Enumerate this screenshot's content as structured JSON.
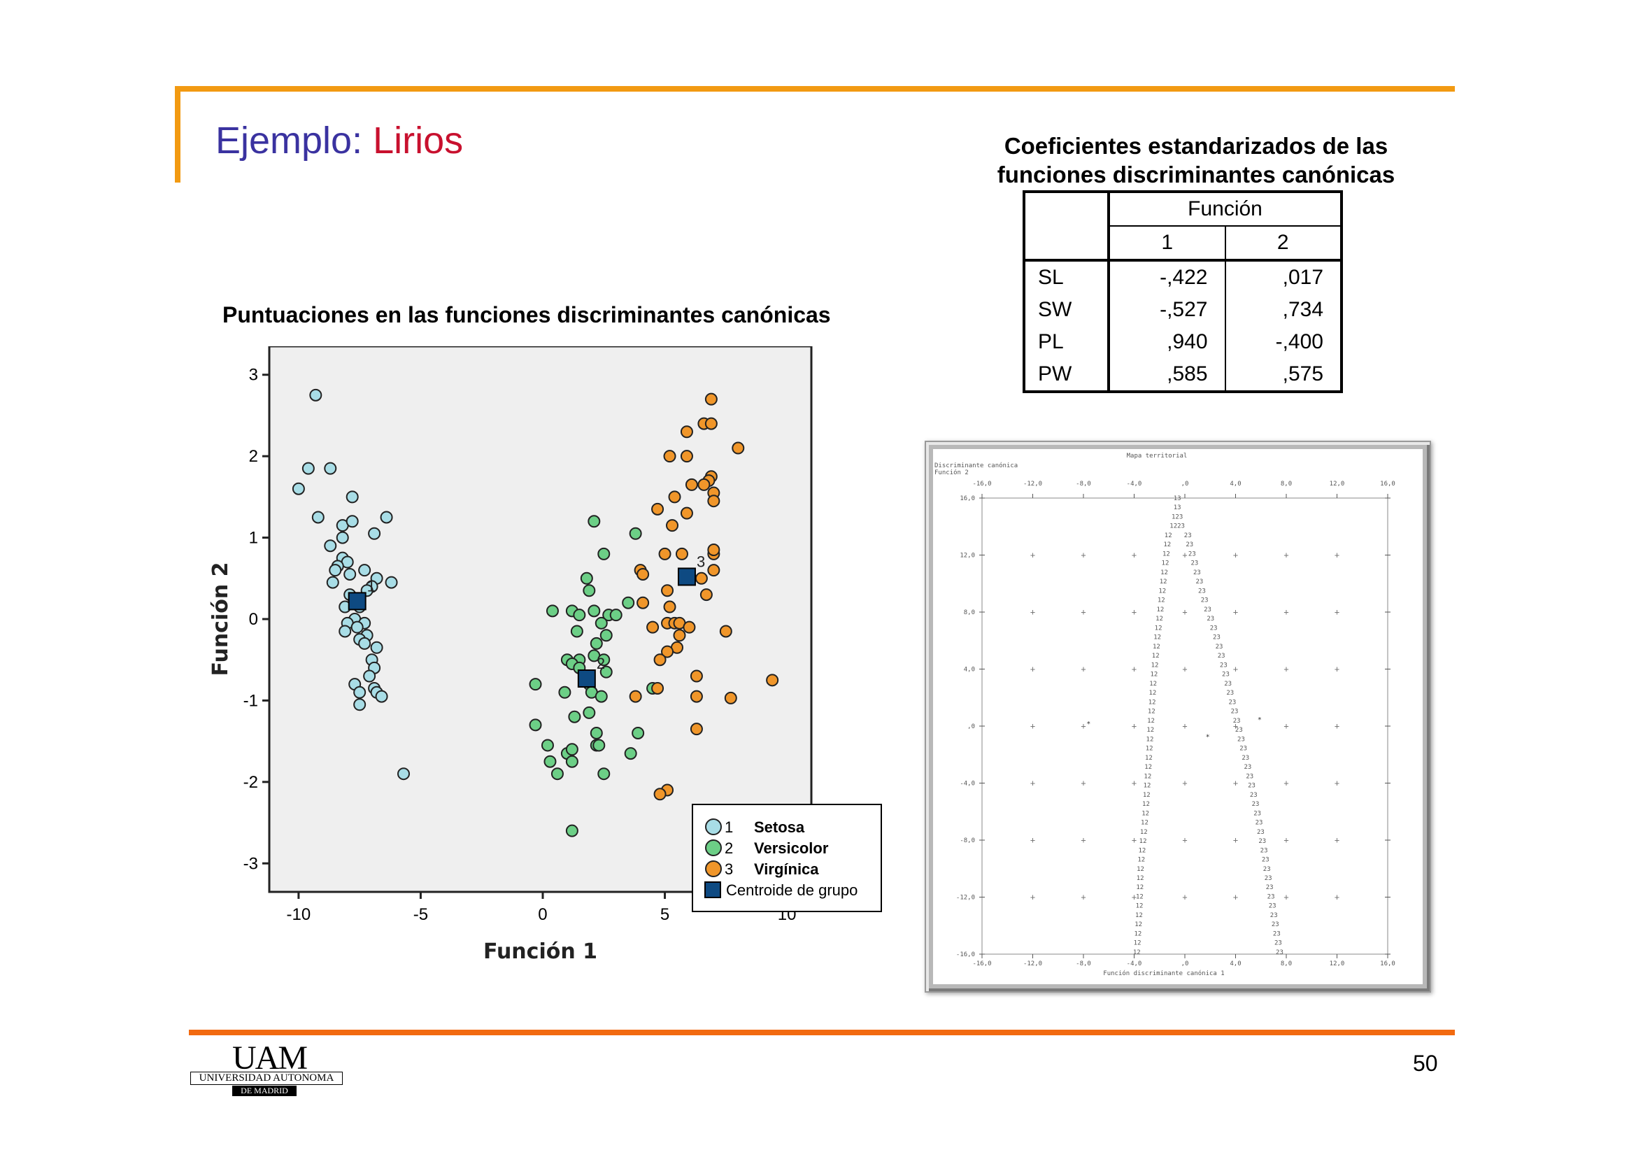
{
  "slide": {
    "title_main": "Ejemplo: ",
    "title_accent": "Lirios",
    "page_number": "50",
    "accent_color": "#f29a12",
    "title_color": "#3a32a0",
    "title_accent_color": "#c8102e"
  },
  "coef_table": {
    "title_line1": "Coeficientes estandarizados de las",
    "title_line2": "funciones discriminantes canónicas",
    "header": "Función",
    "columns": [
      "1",
      "2"
    ],
    "rows": [
      {
        "label": "SL",
        "f1": "-,422",
        "f2": ",017"
      },
      {
        "label": "SW",
        "f1": "-,527",
        "f2": ",734"
      },
      {
        "label": "PL",
        "f1": ",940",
        "f2": "-,400"
      },
      {
        "label": "PW",
        "f1": ",585",
        "f2": ",575"
      }
    ]
  },
  "scatter": {
    "title": "Puntuaciones en las funciones discriminantes canónicas",
    "legend": [
      {
        "num": "1",
        "label": "Setosa",
        "color": "#a8dde6"
      },
      {
        "num": "2",
        "label": "Versicolor",
        "color": "#6ccf86"
      },
      {
        "num": "3",
        "label": "Virgínica",
        "color": "#f0962a"
      },
      {
        "num": "",
        "label": "Centroide de grupo",
        "color": "#0e4a82"
      }
    ]
  },
  "chart_data": [
    {
      "type": "scatter",
      "xlabel": "Función 1",
      "ylabel": "Función 2",
      "xlim": [
        -11.2,
        11
      ],
      "ylim": [
        -3.35,
        3.35
      ],
      "xticks": [
        -10,
        -5,
        0,
        5,
        10
      ],
      "yticks": [
        -3,
        -2,
        -1,
        0,
        1,
        2,
        3
      ],
      "background": "#efefef",
      "legend_position": "bottom-right",
      "series": [
        {
          "name": "Setosa",
          "color": "#a8dde6",
          "points": [
            [
              -9.3,
              2.75
            ],
            [
              -9.6,
              1.85
            ],
            [
              -8.7,
              1.85
            ],
            [
              -10,
              1.6
            ],
            [
              -9.2,
              1.25
            ],
            [
              -7.8,
              1.5
            ],
            [
              -8.2,
              1.15
            ],
            [
              -7.8,
              1.2
            ],
            [
              -6.4,
              1.25
            ],
            [
              -6.9,
              1.05
            ],
            [
              -8.2,
              1.0
            ],
            [
              -8.7,
              0.9
            ],
            [
              -8.2,
              0.75
            ],
            [
              -8.0,
              0.7
            ],
            [
              -8.4,
              0.65
            ],
            [
              -8.5,
              0.6
            ],
            [
              -7.3,
              0.6
            ],
            [
              -6.2,
              0.45
            ],
            [
              -6.8,
              0.5
            ],
            [
              -8.6,
              0.45
            ],
            [
              -7.9,
              0.55
            ],
            [
              -7.0,
              0.4
            ],
            [
              -7.2,
              0.35
            ],
            [
              -7.9,
              0.3
            ],
            [
              -8.1,
              0.15
            ],
            [
              -7.5,
              0.15
            ],
            [
              -7.7,
              0.0
            ],
            [
              -8.0,
              -0.05
            ],
            [
              -7.3,
              -0.05
            ],
            [
              -8.1,
              -0.15
            ],
            [
              -7.6,
              -0.1
            ],
            [
              -7.2,
              -0.2
            ],
            [
              -7.5,
              -0.25
            ],
            [
              -7.3,
              -0.3
            ],
            [
              -6.8,
              -0.35
            ],
            [
              -7.0,
              -0.5
            ],
            [
              -6.9,
              -0.6
            ],
            [
              -7.1,
              -0.7
            ],
            [
              -7.7,
              -0.8
            ],
            [
              -6.9,
              -0.85
            ],
            [
              -7.5,
              -0.9
            ],
            [
              -6.8,
              -0.9
            ],
            [
              -6.6,
              -0.95
            ],
            [
              -7.5,
              -1.05
            ],
            [
              -5.7,
              -1.9
            ]
          ]
        },
        {
          "name": "Versicolor",
          "color": "#6ccf86",
          "points": [
            [
              2.1,
              1.2
            ],
            [
              3.8,
              1.05
            ],
            [
              2.5,
              0.8
            ],
            [
              1.8,
              0.5
            ],
            [
              1.9,
              0.35
            ],
            [
              0.4,
              0.1
            ],
            [
              1.2,
              0.1
            ],
            [
              1.5,
              0.05
            ],
            [
              2.1,
              0.1
            ],
            [
              2.7,
              0.05
            ],
            [
              3.0,
              0.05
            ],
            [
              3.5,
              0.2
            ],
            [
              2.4,
              -0.05
            ],
            [
              1.4,
              -0.15
            ],
            [
              2.2,
              -0.3
            ],
            [
              2.6,
              -0.2
            ],
            [
              2.1,
              -0.45
            ],
            [
              2.5,
              -0.5
            ],
            [
              1.5,
              -0.5
            ],
            [
              1.0,
              -0.5
            ],
            [
              1.2,
              -0.55
            ],
            [
              1.5,
              -0.6
            ],
            [
              2.6,
              -0.65
            ],
            [
              1.7,
              -0.7
            ],
            [
              1.9,
              -0.8
            ],
            [
              -0.3,
              -0.8
            ],
            [
              0.9,
              -0.9
            ],
            [
              2.0,
              -0.9
            ],
            [
              2.4,
              -0.95
            ],
            [
              4.5,
              -0.85
            ],
            [
              1.3,
              -1.2
            ],
            [
              1.9,
              -1.15
            ],
            [
              -0.3,
              -1.3
            ],
            [
              2.2,
              -1.4
            ],
            [
              3.9,
              -1.4
            ],
            [
              0.2,
              -1.55
            ],
            [
              1.0,
              -1.65
            ],
            [
              1.2,
              -1.6
            ],
            [
              2.2,
              -1.55
            ],
            [
              2.3,
              -1.55
            ],
            [
              3.6,
              -1.65
            ],
            [
              0.3,
              -1.75
            ],
            [
              1.2,
              -1.75
            ],
            [
              0.6,
              -1.9
            ],
            [
              2.5,
              -1.9
            ],
            [
              1.2,
              -2.6
            ]
          ]
        },
        {
          "name": "Virgínica",
          "color": "#f0962a",
          "points": [
            [
              6.9,
              2.7
            ],
            [
              6.6,
              2.4
            ],
            [
              6.9,
              2.4
            ],
            [
              5.9,
              2.3
            ],
            [
              8.0,
              2.1
            ],
            [
              5.2,
              2.0
            ],
            [
              5.9,
              2.0
            ],
            [
              6.9,
              1.75
            ],
            [
              6.8,
              1.7
            ],
            [
              6.1,
              1.65
            ],
            [
              6.6,
              1.65
            ],
            [
              7.0,
              1.55
            ],
            [
              7.0,
              1.45
            ],
            [
              5.4,
              1.5
            ],
            [
              4.7,
              1.35
            ],
            [
              5.9,
              1.3
            ],
            [
              5.3,
              1.15
            ],
            [
              5.0,
              0.8
            ],
            [
              5.7,
              0.8
            ],
            [
              7.0,
              0.8
            ],
            [
              7.0,
              0.85
            ],
            [
              4.0,
              0.6
            ],
            [
              4.1,
              0.55
            ],
            [
              6.5,
              0.5
            ],
            [
              7.0,
              0.6
            ],
            [
              5.1,
              0.35
            ],
            [
              6.7,
              0.3
            ],
            [
              4.1,
              0.2
            ],
            [
              5.2,
              0.15
            ],
            [
              5.1,
              -0.05
            ],
            [
              5.4,
              -0.05
            ],
            [
              5.6,
              -0.05
            ],
            [
              4.5,
              -0.1
            ],
            [
              6.0,
              -0.1
            ],
            [
              5.6,
              -0.2
            ],
            [
              7.5,
              -0.15
            ],
            [
              5.5,
              -0.35
            ],
            [
              5.1,
              -0.4
            ],
            [
              4.8,
              -0.5
            ],
            [
              6.3,
              -0.7
            ],
            [
              4.7,
              -0.85
            ],
            [
              3.8,
              -0.95
            ],
            [
              6.3,
              -0.95
            ],
            [
              7.7,
              -0.97
            ],
            [
              9.4,
              -0.75
            ],
            [
              6.3,
              -1.35
            ],
            [
              5.1,
              -2.1
            ],
            [
              4.8,
              -2.15
            ]
          ]
        },
        {
          "name": "Centroide de grupo",
          "color": "#0e4a82",
          "marker": "square",
          "points": [
            [
              -7.6,
              0.22
            ],
            [
              1.8,
              -0.73
            ],
            [
              5.9,
              0.52
            ]
          ]
        }
      ]
    },
    {
      "type": "scatter",
      "title": "Mapa territorial",
      "subtitle_line1": "Discriminante canónica",
      "subtitle_line2": "Función 2",
      "xlabel": "Función discriminante canónica 1",
      "xlim": [
        -16,
        16
      ],
      "ylim": [
        -16,
        16
      ],
      "xtick_labels": [
        "-16,0",
        "-12,0",
        "-8,0",
        "-4,0",
        ",0",
        "4,0",
        "8,0",
        "12,0",
        "16,0"
      ],
      "ytick_labels": [
        "16,0",
        "12,0",
        "8,0",
        "4,0",
        ",0",
        "-4,0",
        "-8,0",
        "-12,0",
        "-16,0"
      ],
      "boundary_12": [
        [
          -1.0,
          16
        ],
        [
          -1.6,
          11
        ],
        [
          -2.2,
          6
        ],
        [
          -2.5,
          3
        ],
        [
          -2.7,
          0
        ],
        [
          -2.9,
          -3
        ],
        [
          -3.1,
          -6
        ],
        [
          -3.5,
          -10
        ],
        [
          -3.6,
          -13
        ],
        [
          -3.8,
          -16
        ]
      ],
      "boundary_23": [
        [
          -0.2,
          16
        ],
        [
          0.3,
          13
        ],
        [
          1.5,
          9
        ],
        [
          2.6,
          6
        ],
        [
          3.4,
          3
        ],
        [
          4.2,
          0
        ],
        [
          5.0,
          -3
        ],
        [
          5.7,
          -6
        ],
        [
          6.3,
          -9
        ],
        [
          6.8,
          -12
        ],
        [
          7.5,
          -16
        ]
      ],
      "top_labels": [
        "13",
        "13",
        "123",
        "1223"
      ],
      "grid_marks": "+"
    }
  ],
  "logo": {
    "mark": "UAM",
    "line1": "UNIVERSIDAD AUTONOMA",
    "line2": "DE MADRID"
  }
}
